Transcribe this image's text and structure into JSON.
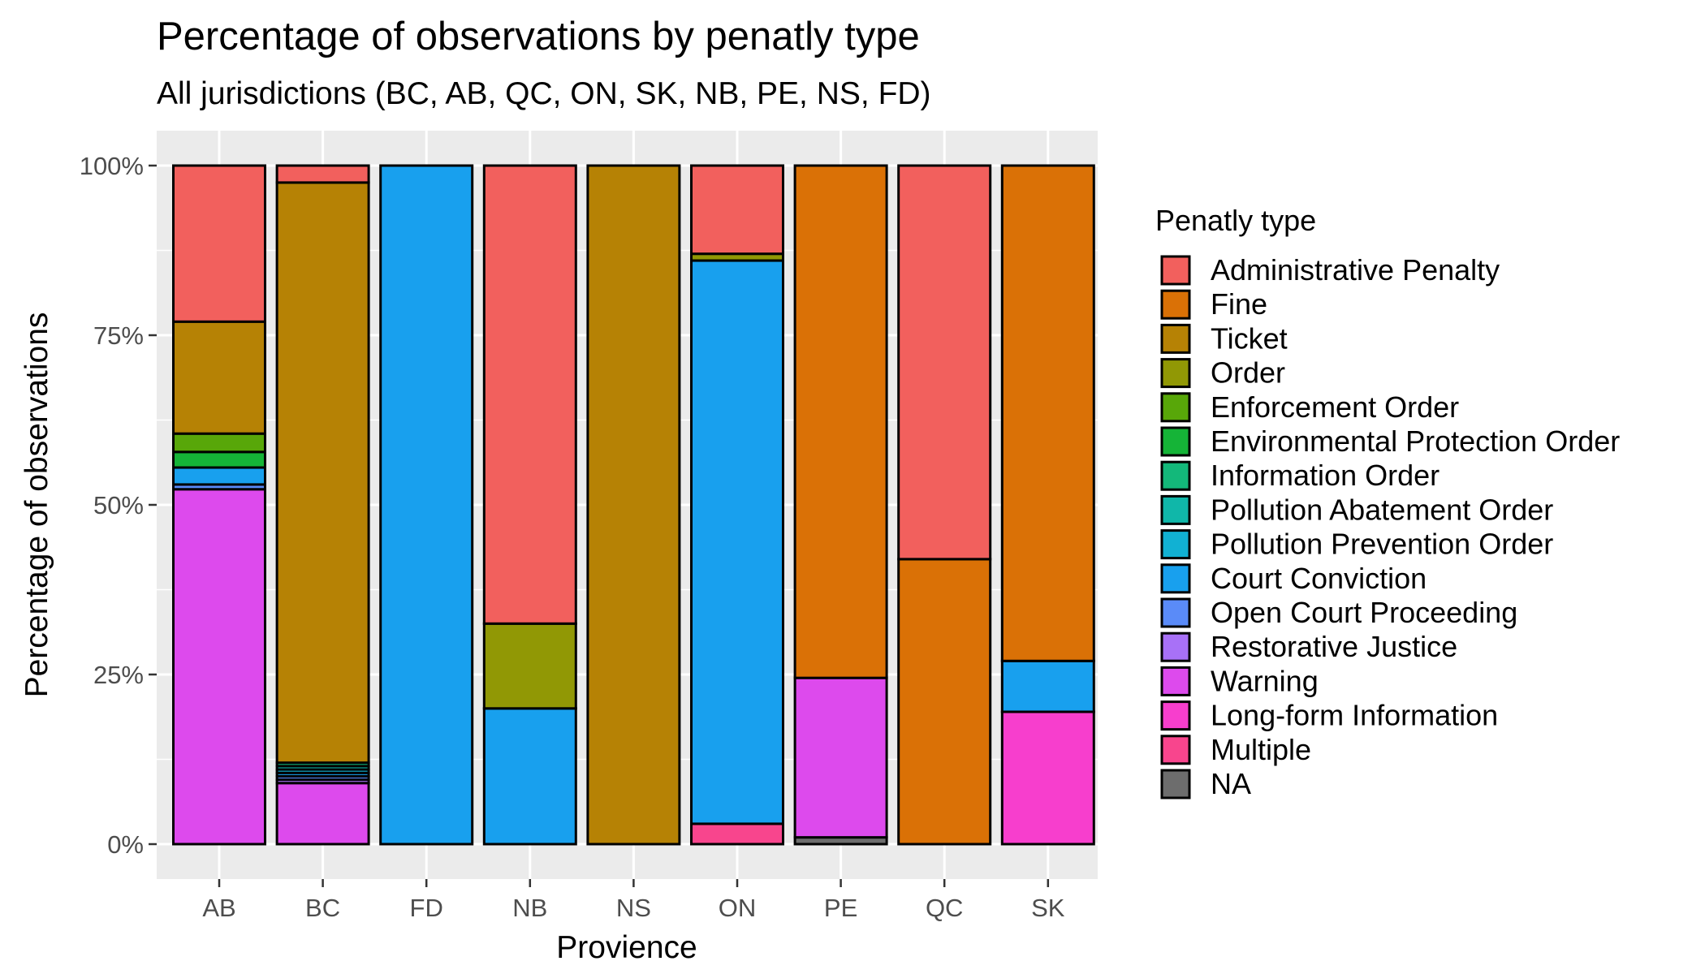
{
  "chart_data": {
    "type": "bar",
    "stacked": "percent",
    "title": "Percentage of observations by penatly type",
    "subtitle": "All jurisdictions (BC, AB, QC, ON, SK, NB, PE, NS, FD)",
    "xlabel": "Provience",
    "ylabel": "Percentage of observations",
    "ylim": [
      0,
      1
    ],
    "y_ticks": [
      {
        "value": 0,
        "label": "0%"
      },
      {
        "value": 0.25,
        "label": "25%"
      },
      {
        "value": 0.5,
        "label": "50%"
      },
      {
        "value": 0.75,
        "label": "75%"
      },
      {
        "value": 1,
        "label": "100%"
      }
    ],
    "grid": true,
    "legend_position": "right",
    "legend_title": "Penatly type",
    "categories": [
      "AB",
      "BC",
      "FD",
      "NB",
      "NS",
      "ON",
      "PE",
      "QC",
      "SK"
    ],
    "series": [
      {
        "name": "Administrative Penalty",
        "color": "#F2605D",
        "values": [
          0.23,
          0.025,
          0,
          0.675,
          0,
          0.13,
          0,
          0.58,
          0
        ]
      },
      {
        "name": "Fine",
        "color": "#DA7106",
        "values": [
          0,
          0,
          0,
          0,
          0,
          0,
          0.755,
          0.42,
          0.73
        ]
      },
      {
        "name": "Ticket",
        "color": "#B68205",
        "values": [
          0.165,
          0.855,
          0,
          0,
          1,
          0,
          0,
          0,
          0
        ]
      },
      {
        "name": "Order",
        "color": "#919805",
        "values": [
          0,
          0,
          0,
          0.125,
          0,
          0.01,
          0,
          0,
          0
        ]
      },
      {
        "name": "Enforcement Order",
        "color": "#58A709",
        "values": [
          0.027,
          0,
          0,
          0,
          0,
          0,
          0,
          0,
          0
        ]
      },
      {
        "name": "Environmental Protection Order",
        "color": "#15B437",
        "values": [
          0.023,
          0,
          0,
          0,
          0,
          0,
          0,
          0,
          0
        ]
      },
      {
        "name": "Information Order",
        "color": "#13B87A",
        "values": [
          0,
          0.005,
          0,
          0,
          0,
          0,
          0,
          0,
          0
        ]
      },
      {
        "name": "Pollution Abatement Order",
        "color": "#10B7A9",
        "values": [
          0,
          0.005,
          0,
          0,
          0,
          0,
          0,
          0,
          0
        ]
      },
      {
        "name": "Pollution Prevention Order",
        "color": "#11B1D3",
        "values": [
          0,
          0.005,
          0,
          0,
          0,
          0,
          0,
          0,
          0
        ]
      },
      {
        "name": "Court Conviction",
        "color": "#18A0EE",
        "values": [
          0.025,
          0.005,
          1,
          0.2,
          0,
          0.83,
          0,
          0,
          0.075
        ]
      },
      {
        "name": "Open Court Proceeding",
        "color": "#5A8BF8",
        "values": [
          0.007,
          0.005,
          0,
          0,
          0,
          0,
          0,
          0,
          0
        ]
      },
      {
        "name": "Restorative Justice",
        "color": "#A871F7",
        "values": [
          0,
          0.005,
          0,
          0,
          0,
          0,
          0,
          0,
          0
        ]
      },
      {
        "name": "Warning",
        "color": "#DD4AED",
        "values": [
          0.523,
          0.09,
          0,
          0,
          0,
          0,
          0.235,
          0,
          0
        ]
      },
      {
        "name": "Long-form Information",
        "color": "#F73ECD",
        "values": [
          0,
          0,
          0,
          0,
          0,
          0,
          0,
          0,
          0.195
        ]
      },
      {
        "name": "Multiple",
        "color": "#F8458D",
        "values": [
          0,
          0,
          0,
          0,
          0,
          0.03,
          0,
          0,
          0
        ]
      },
      {
        "name": "NA",
        "color": "#6D6D6D",
        "values": [
          0,
          0,
          0,
          0,
          0,
          0,
          0.01,
          0,
          0
        ]
      }
    ]
  }
}
